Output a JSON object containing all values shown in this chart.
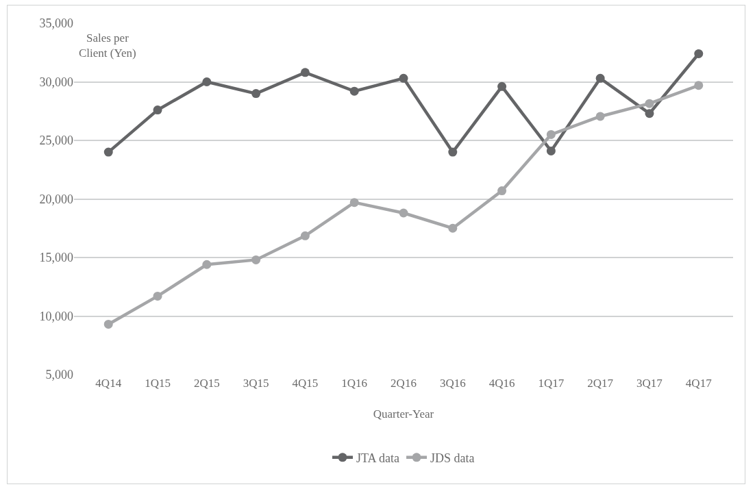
{
  "chart_data": {
    "type": "line",
    "xlabel": "Quarter-Year",
    "ylabel": "Sales per\nClient (Yen)",
    "categories": [
      "4Q14",
      "1Q15",
      "2Q15",
      "3Q15",
      "4Q15",
      "1Q16",
      "2Q16",
      "3Q16",
      "4Q16",
      "1Q17",
      "2Q17",
      "3Q17",
      "4Q17"
    ],
    "series": [
      {
        "name": "JTA data",
        "color": "#646567",
        "values": [
          24000,
          27600,
          30000,
          29000,
          30800,
          29200,
          30300,
          24000,
          29600,
          24100,
          30300,
          27300,
          32400
        ]
      },
      {
        "name": "JDS data",
        "color": "#a5a6a8",
        "values": [
          9300,
          11700,
          14400,
          14800,
          16850,
          19700,
          18800,
          17500,
          20700,
          25500,
          27050,
          28150,
          29700
        ]
      }
    ],
    "ylim": [
      5000,
      35000
    ],
    "yticks": [
      {
        "value": 5000,
        "label": "5,000"
      },
      {
        "value": 10000,
        "label": "10,000"
      },
      {
        "value": 15000,
        "label": "15,000"
      },
      {
        "value": 20000,
        "label": "20,000"
      },
      {
        "value": 25000,
        "label": "25,000"
      },
      {
        "value": 30000,
        "label": "30,000"
      },
      {
        "value": 35000,
        "label": "35,000"
      }
    ],
    "grid": "y",
    "legend": "bottom",
    "marker": "circle",
    "line_style": "solid"
  }
}
